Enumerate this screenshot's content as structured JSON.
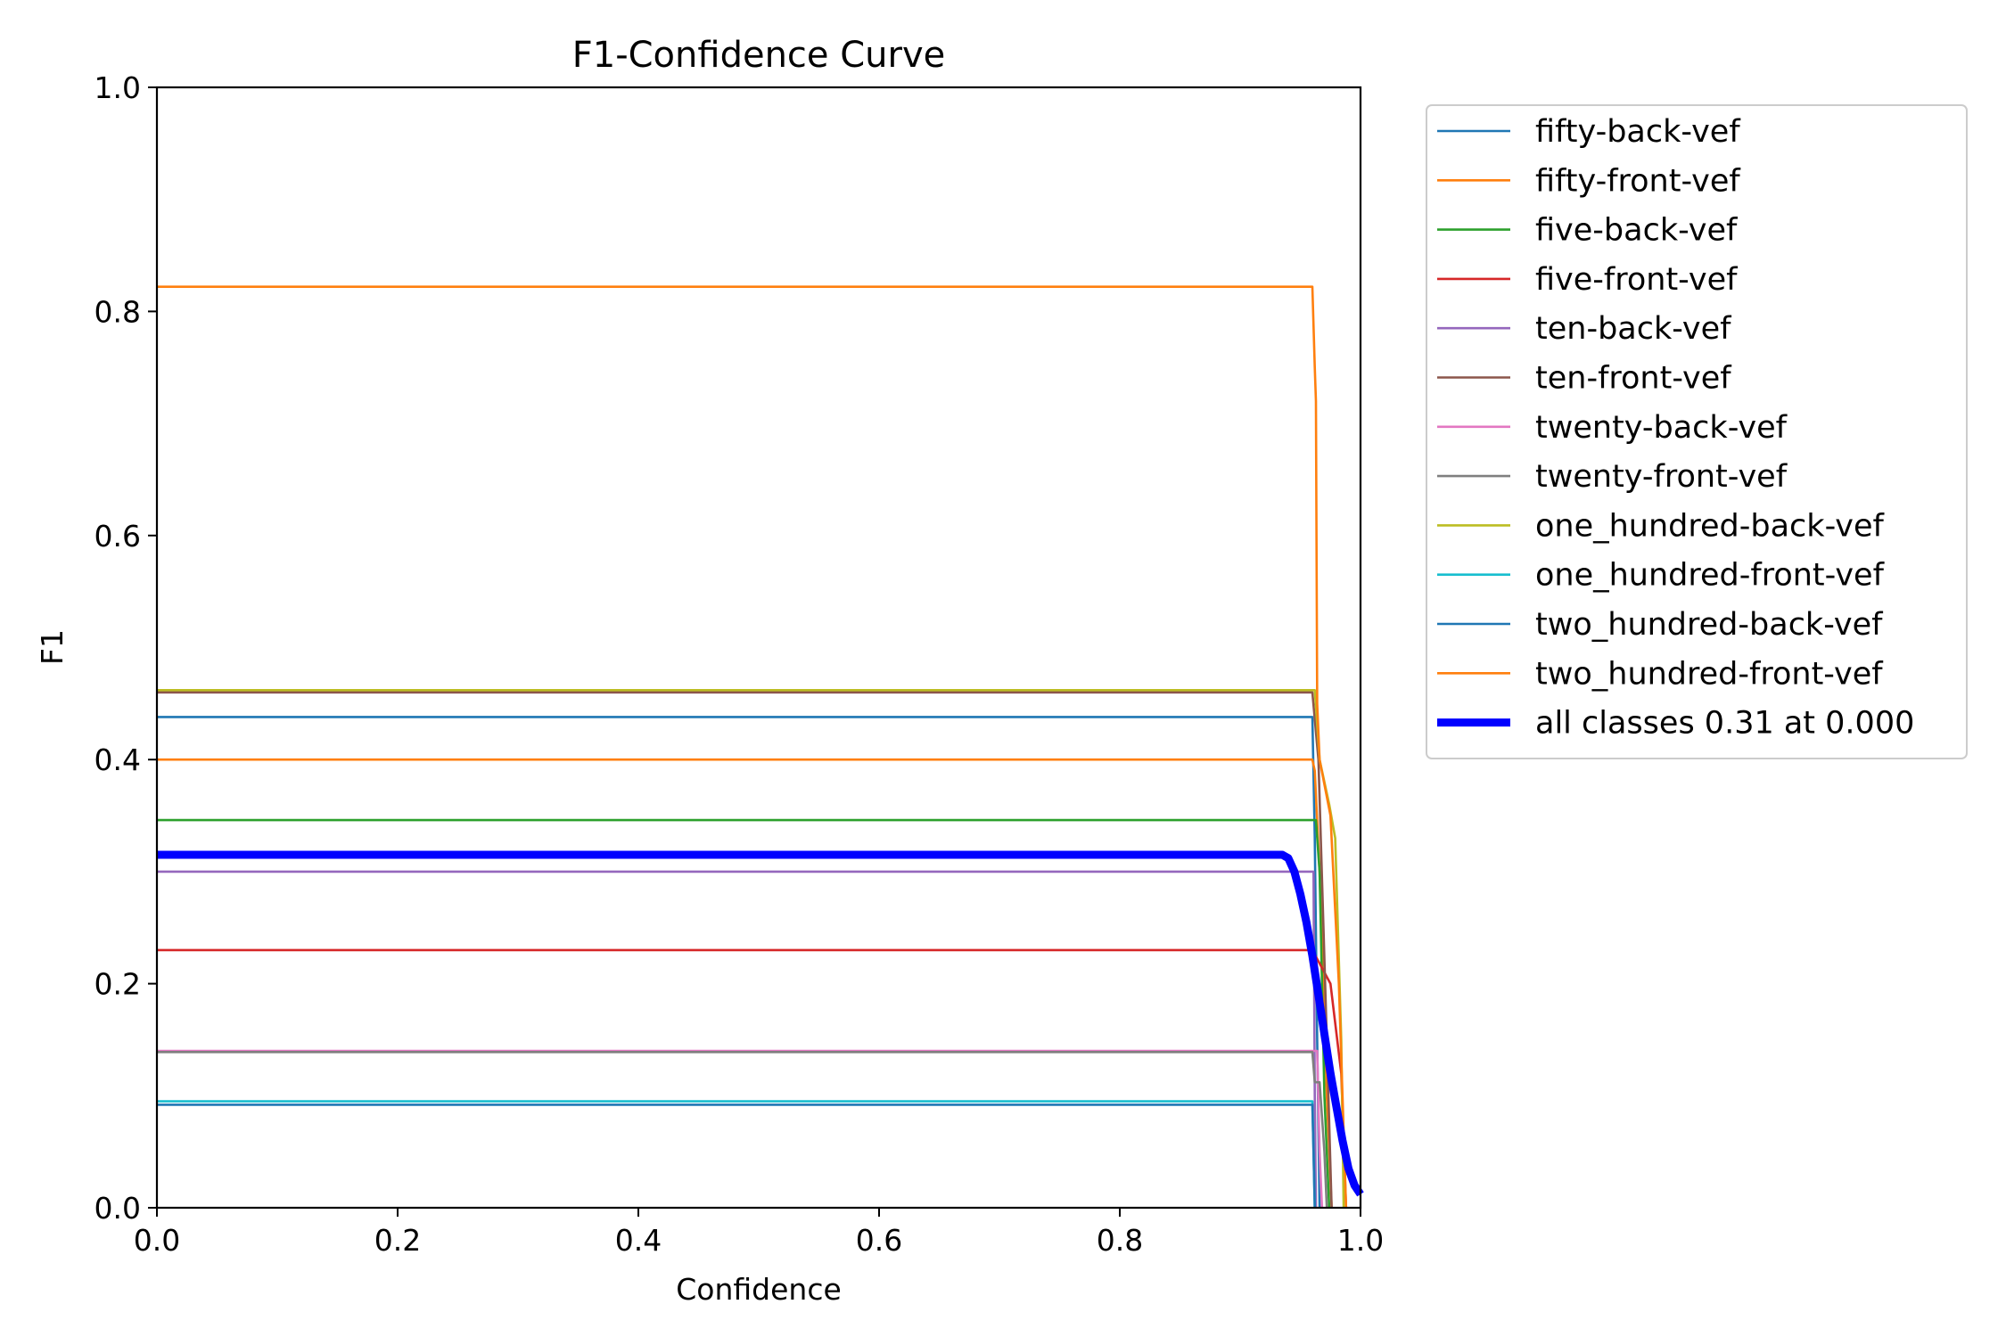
{
  "chart_data": {
    "type": "line",
    "title": "F1-Confidence Curve",
    "xlabel": "Confidence",
    "ylabel": "F1",
    "xlim": [
      0.0,
      1.0
    ],
    "ylim": [
      0.0,
      1.0
    ],
    "xticks": [
      "0.0",
      "0.2",
      "0.4",
      "0.6",
      "0.8",
      "1.0"
    ],
    "yticks": [
      "0.0",
      "0.2",
      "0.4",
      "0.6",
      "0.8",
      "1.0"
    ],
    "grid": false,
    "legend_position": "outside-right-top",
    "series": [
      {
        "name": "fifty-back-vef",
        "color": "#1f77b4",
        "x": [
          0,
          0.96,
          0.962,
          0.964,
          0.966
        ],
        "y": [
          0.438,
          0.438,
          0.33,
          0.15,
          0
        ]
      },
      {
        "name": "fifty-front-vef",
        "color": "#ff7f0e",
        "x": [
          0,
          0.96,
          0.962,
          0.966,
          0.972,
          0.976
        ],
        "y": [
          0.4,
          0.4,
          0.39,
          0.3,
          0.1,
          0
        ]
      },
      {
        "name": "five-back-vef",
        "color": "#2ca02c",
        "x": [
          0,
          0.963,
          0.966,
          0.97,
          0.974
        ],
        "y": [
          0.346,
          0.346,
          0.3,
          0.1,
          0
        ]
      },
      {
        "name": "five-front-vef",
        "color": "#d62728",
        "x": [
          0,
          0.96,
          0.965,
          0.975,
          0.984,
          0.988
        ],
        "y": [
          0.23,
          0.23,
          0.22,
          0.2,
          0.12,
          0
        ]
      },
      {
        "name": "ten-back-vef",
        "color": "#9467bd",
        "x": [
          0,
          0.961,
          0.962,
          0.963
        ],
        "y": [
          0.3,
          0.3,
          0.1,
          0
        ]
      },
      {
        "name": "ten-front-vef",
        "color": "#8c564b",
        "x": [
          0,
          0.96,
          0.965,
          0.972,
          0.976
        ],
        "y": [
          0.46,
          0.46,
          0.4,
          0.15,
          0
        ]
      },
      {
        "name": "twenty-back-vef",
        "color": "#e377c2",
        "x": [
          0,
          0.964,
          0.966,
          0.968
        ],
        "y": [
          0.14,
          0.14,
          0.05,
          0
        ]
      },
      {
        "name": "twenty-front-vef",
        "color": "#7f7f7f",
        "x": [
          0,
          0.96,
          0.962,
          0.966,
          0.97,
          0.972
        ],
        "y": [
          0.139,
          0.139,
          0.112,
          0.112,
          0.05,
          0
        ]
      },
      {
        "name": "one_hundred-back-vef",
        "color": "#bcbd22",
        "x": [
          0,
          0.962,
          0.966,
          0.974,
          0.979,
          0.984,
          0.986
        ],
        "y": [
          0.462,
          0.462,
          0.4,
          0.36,
          0.33,
          0.15,
          0
        ]
      },
      {
        "name": "one_hundred-front-vef",
        "color": "#17becf",
        "x": [
          0,
          0.96,
          0.961,
          0.962
        ],
        "y": [
          0.095,
          0.095,
          0.05,
          0
        ]
      },
      {
        "name": "two_hundred-back-vef",
        "color": "#1f77b4",
        "x": [
          0,
          0.96,
          0.961,
          0.962
        ],
        "y": [
          0.092,
          0.092,
          0.05,
          0
        ]
      },
      {
        "name": "two_hundred-front-vef",
        "color": "#ff7f0e",
        "x": [
          0,
          0.96,
          0.962,
          0.963,
          0.964,
          0.966,
          0.975,
          0.982,
          0.985,
          0.988
        ],
        "y": [
          0.822,
          0.822,
          0.75,
          0.72,
          0.45,
          0.4,
          0.35,
          0.2,
          0.1,
          0
        ]
      },
      {
        "name": "all classes 0.31 at 0.000",
        "color": "#0000ff",
        "bold": true,
        "x": [
          0,
          0.935,
          0.94,
          0.945,
          0.95,
          0.955,
          0.96,
          0.965,
          0.97,
          0.975,
          0.98,
          0.985,
          0.99,
          0.995,
          1.0
        ],
        "y": [
          0.315,
          0.315,
          0.312,
          0.3,
          0.28,
          0.255,
          0.225,
          0.19,
          0.155,
          0.12,
          0.09,
          0.06,
          0.035,
          0.02,
          0.012
        ]
      }
    ]
  }
}
